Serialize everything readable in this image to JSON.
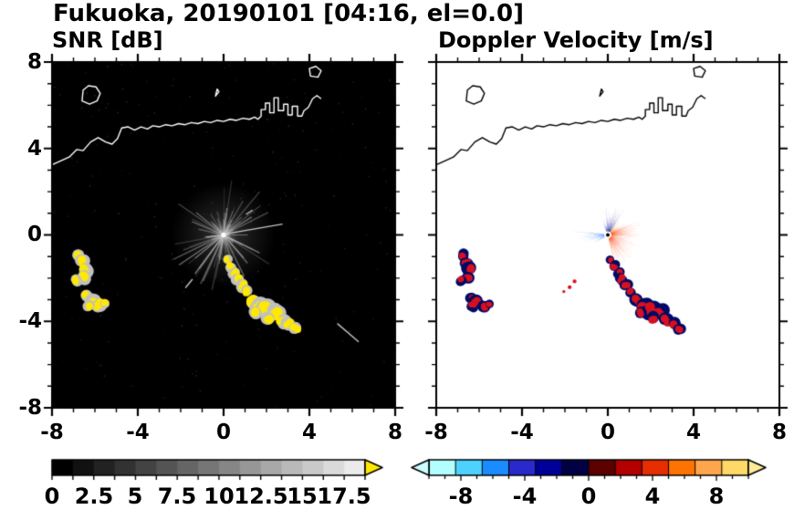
{
  "title": "Fukuoka, 20190101 [04:16, el=0.0]",
  "panels": [
    {
      "label": "SNR [dB]"
    },
    {
      "label": "Doppler Velocity [m/s]"
    }
  ],
  "axis_labels": {
    "x": [
      "-8",
      "-4",
      "0",
      "4",
      "8"
    ],
    "y": [
      "8",
      "4",
      "0",
      "-4",
      "-8"
    ]
  },
  "colorbar_labels": {
    "snr": [
      "0",
      "2.5",
      "5",
      "7.5",
      "10",
      "12.5",
      "15",
      "17.5"
    ],
    "velocity": [
      "-8",
      "-4",
      "0",
      "4",
      "8"
    ]
  },
  "chart_data": {
    "type": "heatmap",
    "subplots": [
      {
        "title": "SNR [dB]",
        "xlim": [
          -8,
          8
        ],
        "ylim": [
          -8,
          8
        ],
        "colorbar": {
          "min": 0,
          "max": 18.75,
          "tick_values": [
            0,
            2.5,
            5,
            7.5,
            10,
            12.5,
            15,
            17.5
          ],
          "palette": "black-to-white",
          "over_color": "#ffe800"
        }
      },
      {
        "title": "Doppler Velocity [m/s]",
        "xlim": [
          -8,
          8
        ],
        "ylim": [
          -8,
          8
        ],
        "colorbar": {
          "min": -10,
          "max": 10,
          "tick_values": [
            -8,
            -4,
            0,
            4,
            8
          ],
          "palette": [
            "#b3ffff",
            "#4dd2ff",
            "#1a8cff",
            "#2929cc",
            "#000099",
            "#000042",
            "#5c0000",
            "#b30000",
            "#e62e00",
            "#ff7300",
            "#ffa64d",
            "#ffd966"
          ],
          "under_color": "#ccffff",
          "over_color": "#ffeb99"
        }
      }
    ],
    "axis": {
      "major_ticks": [
        -8,
        -4,
        0,
        4,
        8
      ],
      "minor_step": 1
    },
    "coastlines": [
      [
        [
          -8,
          3.25
        ],
        [
          -7.55,
          3.45
        ],
        [
          -7.2,
          3.6
        ],
        [
          -6.85,
          3.95
        ],
        [
          -6.55,
          3.9
        ],
        [
          -6.2,
          4.3
        ],
        [
          -5.85,
          4.5
        ],
        [
          -5.5,
          4.3
        ],
        [
          -5.2,
          4.2
        ],
        [
          -4.95,
          4.45
        ],
        [
          -4.75,
          4.95
        ],
        [
          -4.45,
          5.0
        ],
        [
          -4.15,
          4.85
        ],
        [
          -3.85,
          5.0
        ],
        [
          -3.55,
          4.9
        ],
        [
          -3.3,
          5.05
        ],
        [
          -3.0,
          5.0
        ],
        [
          -2.7,
          5.1
        ],
        [
          -2.4,
          5.05
        ],
        [
          -2.1,
          5.15
        ],
        [
          -1.8,
          5.1
        ],
        [
          -1.5,
          5.2
        ],
        [
          -1.2,
          5.15
        ],
        [
          -0.9,
          5.25
        ],
        [
          -0.6,
          5.2
        ],
        [
          -0.3,
          5.3
        ],
        [
          0.0,
          5.25
        ],
        [
          0.3,
          5.35
        ],
        [
          0.6,
          5.3
        ],
        [
          0.9,
          5.4
        ],
        [
          1.2,
          5.35
        ],
        [
          1.45,
          5.45
        ],
        [
          1.6,
          5.35
        ],
        [
          1.75,
          5.5
        ],
        [
          1.75,
          5.8
        ],
        [
          1.95,
          5.8
        ],
        [
          1.95,
          6.1
        ],
        [
          2.15,
          6.1
        ],
        [
          2.15,
          5.65
        ],
        [
          2.35,
          5.65
        ],
        [
          2.35,
          6.35
        ],
        [
          2.55,
          6.35
        ],
        [
          2.55,
          5.75
        ],
        [
          2.8,
          5.75
        ],
        [
          2.8,
          6.05
        ],
        [
          3.0,
          6.05
        ],
        [
          3.0,
          5.55
        ],
        [
          3.2,
          5.55
        ],
        [
          3.2,
          5.95
        ],
        [
          3.45,
          5.95
        ],
        [
          3.45,
          5.5
        ],
        [
          3.65,
          5.5
        ],
        [
          3.75,
          5.75
        ],
        [
          3.95,
          5.9
        ],
        [
          4.15,
          6.3
        ],
        [
          4.35,
          6.45
        ],
        [
          4.55,
          6.3
        ]
      ]
    ],
    "islands": [
      [
        [
          -6.6,
          6.2
        ],
        [
          -6.25,
          6.05
        ],
        [
          -5.9,
          6.2
        ],
        [
          -5.75,
          6.55
        ],
        [
          -5.95,
          6.85
        ],
        [
          -6.3,
          6.9
        ],
        [
          -6.55,
          6.7
        ]
      ],
      [
        [
          4.05,
          7.35
        ],
        [
          4.4,
          7.3
        ],
        [
          4.55,
          7.6
        ],
        [
          4.3,
          7.8
        ],
        [
          4.0,
          7.7
        ]
      ],
      [
        [
          -0.38,
          6.42
        ],
        [
          -0.22,
          6.62
        ],
        [
          -0.3,
          6.75
        ]
      ]
    ],
    "echo_locations": [
      [
        -6.75,
        -0.95,
        0.18
      ],
      [
        -6.6,
        -1.25,
        0.2
      ],
      [
        -6.45,
        -1.6,
        0.22
      ],
      [
        -6.55,
        -1.95,
        0.2
      ],
      [
        -6.85,
        -2.1,
        0.16
      ],
      [
        -6.35,
        -2.85,
        0.18
      ],
      [
        -6.1,
        -3.1,
        0.22
      ],
      [
        -5.8,
        -3.25,
        0.2
      ],
      [
        -6.3,
        -3.3,
        0.16
      ],
      [
        -5.55,
        -3.15,
        0.14
      ],
      [
        0.15,
        -1.15,
        0.14
      ],
      [
        0.3,
        -1.45,
        0.16
      ],
      [
        0.5,
        -1.75,
        0.16
      ],
      [
        0.65,
        -2.05,
        0.18
      ],
      [
        0.85,
        -2.35,
        0.18
      ],
      [
        1.05,
        -2.6,
        0.16
      ],
      [
        1.35,
        -3.05,
        0.22
      ],
      [
        1.7,
        -3.3,
        0.26
      ],
      [
        2.05,
        -3.45,
        0.28
      ],
      [
        2.45,
        -3.6,
        0.24
      ],
      [
        2.1,
        -3.85,
        0.2
      ],
      [
        2.75,
        -3.95,
        0.22
      ],
      [
        3.05,
        -4.15,
        0.2
      ],
      [
        3.35,
        -4.35,
        0.18
      ],
      [
        1.5,
        -3.6,
        0.18
      ]
    ],
    "snr": {
      "background": "#000000",
      "coast_color": "#ffffff",
      "echo_color": "#ffe900",
      "halo_color": "#c0c0c0",
      "spoke_color": "#c8c8c8",
      "spoke_count": 95,
      "spoke_max_len": 2.4,
      "seed": 7,
      "noise_count": 240,
      "streaks": [
        [
          [
            0.1,
            0.05
          ],
          [
            2.75,
            0.5
          ]
        ],
        [
          [
            -1.45,
            -2.05
          ],
          [
            -1.78,
            -2.45
          ]
        ],
        [
          [
            1.05,
            0.95
          ],
          [
            1.35,
            1.15
          ]
        ],
        [
          [
            5.3,
            -4.1
          ],
          [
            6.3,
            -4.95
          ]
        ]
      ]
    },
    "velocity": {
      "background": "#ffffff",
      "coast_color": "#000000",
      "echo_color": "#d8101e",
      "rim_color": "#000a66",
      "center_dot_color": "#000000",
      "specks": [
        [
          -1.55,
          -2.15,
          0.09
        ],
        [
          -1.78,
          -2.42,
          0.09
        ],
        [
          -2.05,
          -2.62,
          0.07
        ]
      ],
      "wedges": [
        [
          -78,
          28,
          1.85,
          "#ff3b00",
          56
        ],
        [
          28,
          52,
          1.05,
          "#ff6a00",
          12
        ],
        [
          55,
          96,
          1.45,
          "#000d8a",
          24
        ],
        [
          98,
          112,
          0.8,
          "#1a2fae",
          6
        ],
        [
          168,
          197,
          1.9,
          "#1f6fff",
          16
        ],
        [
          202,
          214,
          0.95,
          "#6fa8ff",
          6
        ]
      ]
    }
  }
}
